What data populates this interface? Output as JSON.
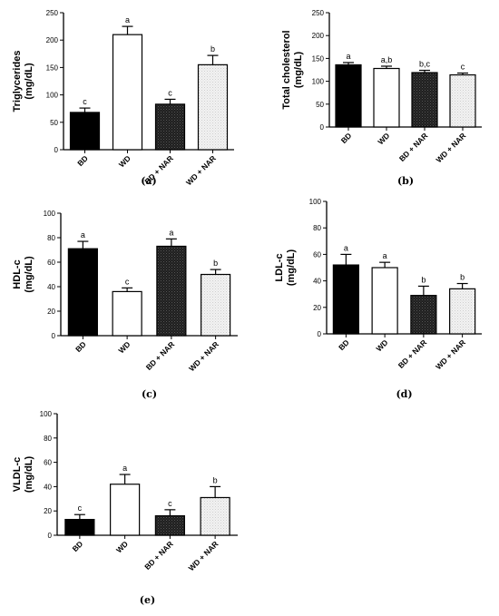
{
  "chart_data": [
    {
      "panel": "(a)",
      "type": "bar",
      "ylabel": "Triglycerides (mg/dL)",
      "categories": [
        "BD",
        "WD",
        "BD + NAR",
        "WD + NAR"
      ],
      "values": [
        68,
        210,
        83,
        155
      ],
      "errors": [
        8,
        15,
        9,
        17
      ],
      "letters": [
        "c",
        "a",
        "c",
        "b"
      ],
      "ylim": [
        0,
        250
      ],
      "yticks": [
        0,
        50,
        100,
        150,
        200,
        250
      ]
    },
    {
      "panel": "(b)",
      "type": "bar",
      "ylabel": "Total cholesterol (mg/dL)",
      "categories": [
        "BD",
        "WD",
        "BD + NAR",
        "WD + NAR"
      ],
      "values": [
        136,
        128,
        119,
        114
      ],
      "errors": [
        5,
        5,
        5,
        4
      ],
      "letters": [
        "a",
        "a,b",
        "b,c",
        "c"
      ],
      "ylim": [
        0,
        250
      ],
      "yticks": [
        0,
        50,
        100,
        150,
        200,
        250
      ]
    },
    {
      "panel": "(c)",
      "type": "bar",
      "ylabel": "HDL-c (mg/dL)",
      "categories": [
        "BD",
        "WD",
        "BD + NAR",
        "WD + NAR"
      ],
      "values": [
        71,
        36,
        73,
        50
      ],
      "errors": [
        6,
        3,
        6,
        4
      ],
      "letters": [
        "a",
        "c",
        "a",
        "b"
      ],
      "ylim": [
        0,
        100
      ],
      "yticks": [
        0,
        20,
        40,
        60,
        80,
        100
      ]
    },
    {
      "panel": "(d)",
      "type": "bar",
      "ylabel": "LDL-c (mg/dL)",
      "categories": [
        "BD",
        "WD",
        "BD + NAR",
        "WD + NAR"
      ],
      "values": [
        52,
        50,
        29,
        34
      ],
      "errors": [
        8,
        4,
        7,
        4
      ],
      "letters": [
        "a",
        "a",
        "b",
        "b"
      ],
      "ylim": [
        0,
        100
      ],
      "yticks": [
        0,
        20,
        40,
        60,
        80,
        100
      ]
    },
    {
      "panel": "(e)",
      "type": "bar",
      "ylabel": "VLDL-c (mg/dL)",
      "categories": [
        "BD",
        "WD",
        "BD + NAR",
        "WD + NAR"
      ],
      "values": [
        13,
        42,
        16,
        31
      ],
      "errors": [
        4,
        8,
        5,
        9
      ],
      "letters": [
        "c",
        "a",
        "c",
        "b"
      ],
      "ylim": [
        0,
        100
      ],
      "yticks": [
        0,
        20,
        40,
        60,
        80,
        100
      ]
    }
  ],
  "colors": {
    "bd_fill": "#000000",
    "wd_fill": "#ffffff",
    "bd_nar_fill": "#262626",
    "wd_nar_fill": "#ebebeb",
    "axis": "#000000"
  }
}
